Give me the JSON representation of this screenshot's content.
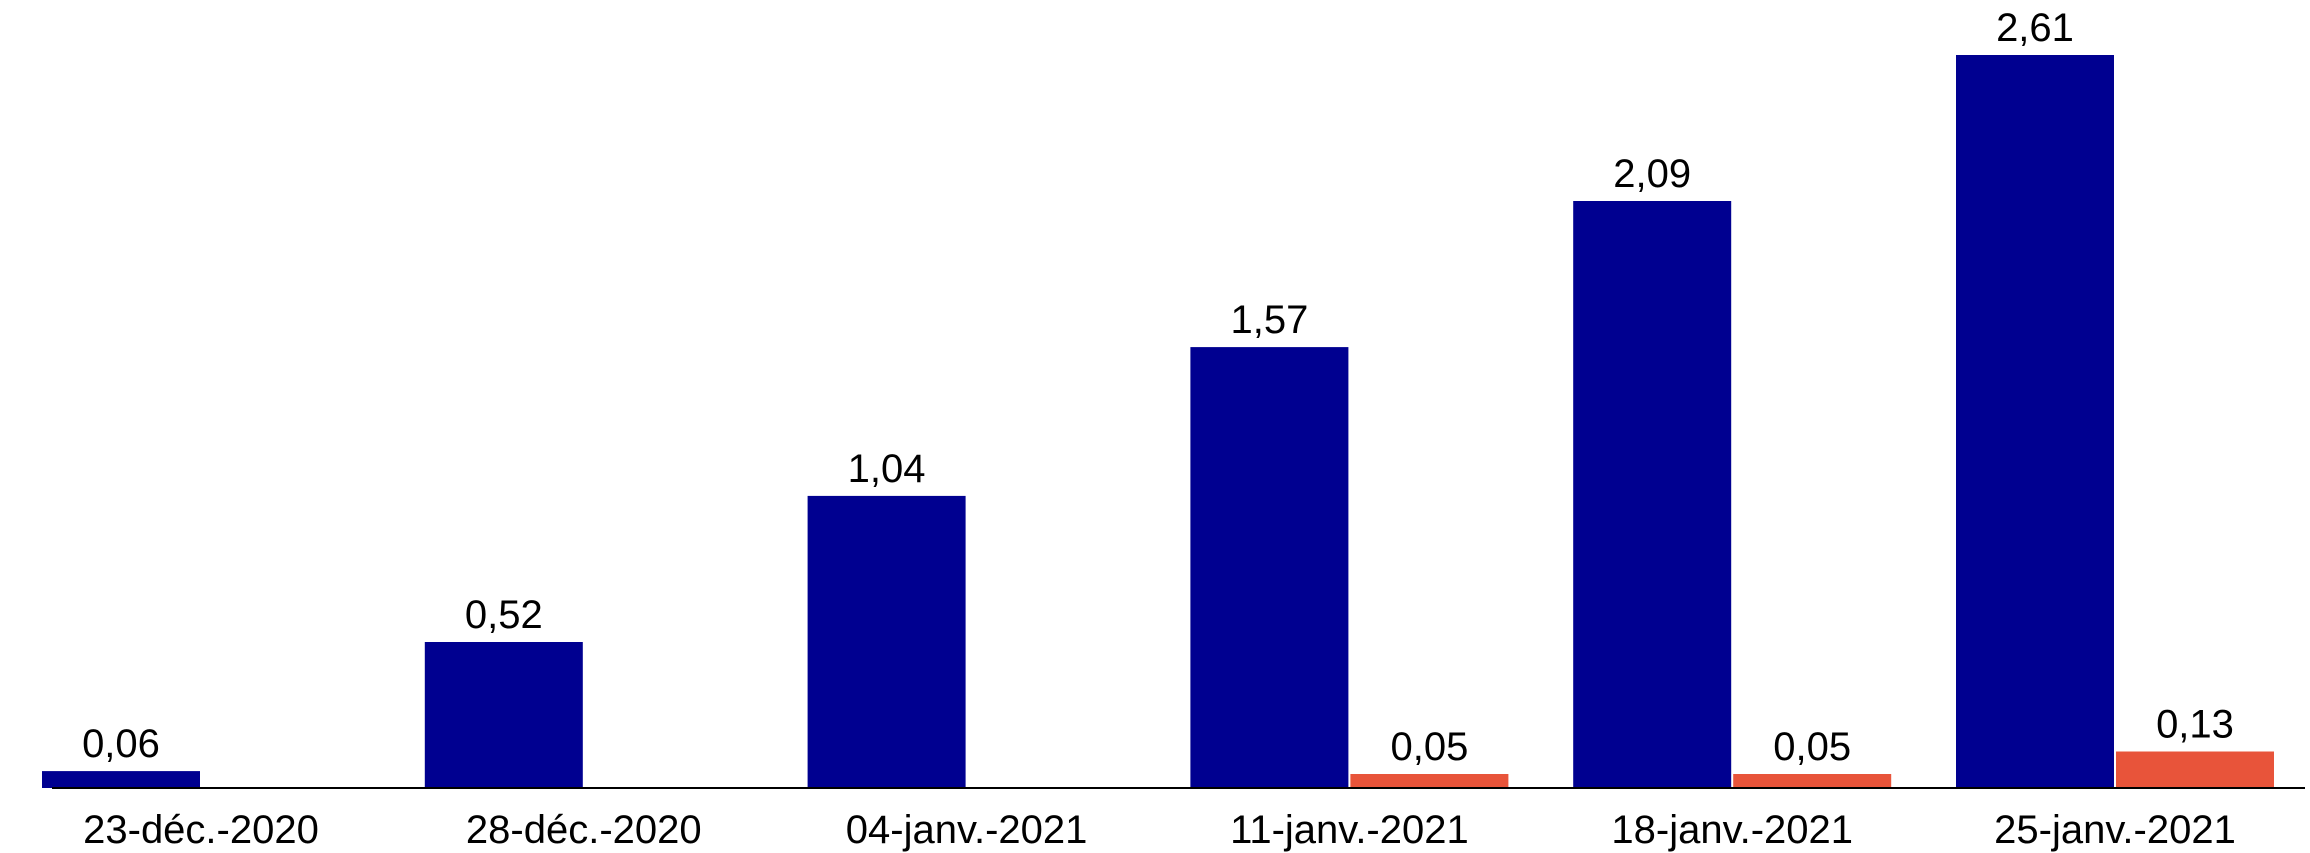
{
  "chart_data": {
    "type": "bar",
    "categories": [
      "23-déc.-2020",
      "28-déc.-2020",
      "04-janv.-2021",
      "11-janv.-2021",
      "18-janv.-2021",
      "25-janv.-2021"
    ],
    "series": [
      {
        "values": [
          0.06,
          0.52,
          1.04,
          1.57,
          2.09,
          2.61
        ],
        "labels": [
          "0,06",
          "0,52",
          "1,04",
          "1,57",
          "2,09",
          "2,61"
        ],
        "color": "#000090"
      },
      {
        "values": [
          null,
          null,
          null,
          0.05,
          0.05,
          0.13
        ],
        "labels": [
          "",
          "",
          "",
          "0,05",
          "0,05",
          "0,13"
        ],
        "color": "#E8543A"
      }
    ],
    "title": "",
    "xlabel": "",
    "ylabel": "",
    "ylim": [
      0,
      2.61
    ],
    "grid": false,
    "legend": "none"
  }
}
